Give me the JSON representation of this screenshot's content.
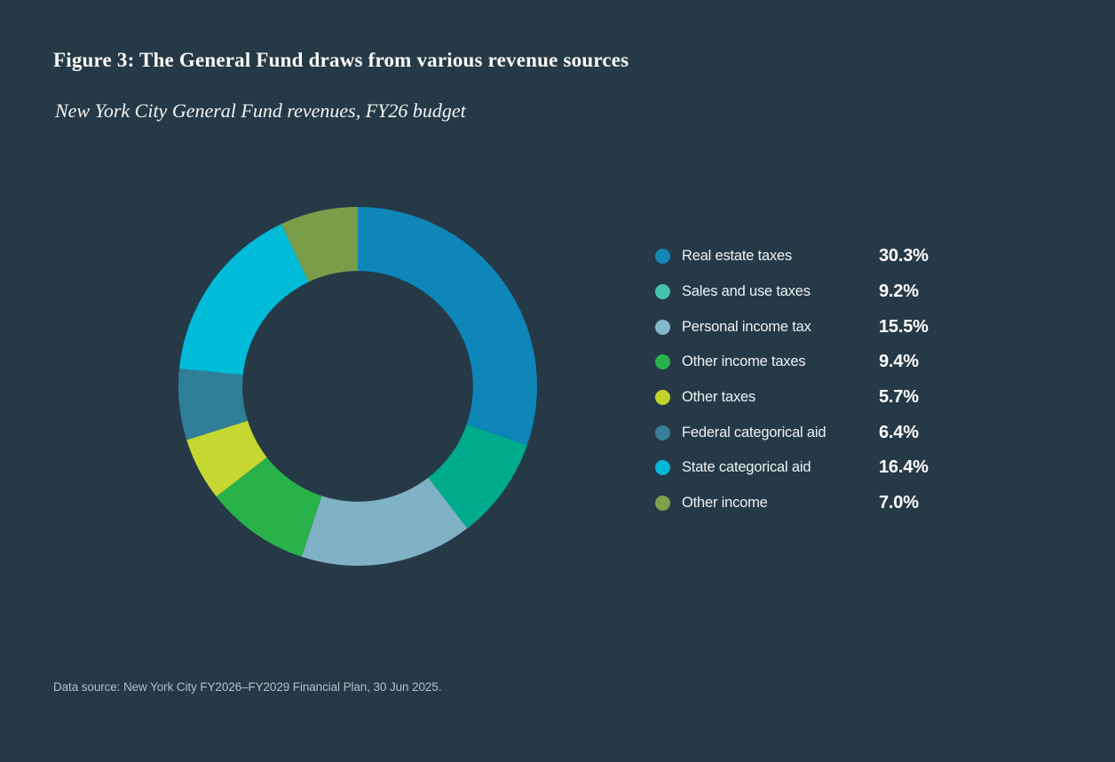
{
  "figure": {
    "title": "Figure 3: The General Fund draws from various revenue sources",
    "subtitle": "New York City General Fund revenues, FY26 budget",
    "source_note": "Data source: New York City FY2026–FY2029 Financial Plan, 30 Jun 2025."
  },
  "colors": {
    "background": "#263947",
    "title_text": "#fbfbf8",
    "legend_label_text": "#eef1f1",
    "legend_value_text": "#ffffff",
    "source_text": "#b3bec6"
  },
  "chart_data": {
    "type": "pie",
    "subtype": "donut",
    "title": "Figure 3: The General Fund draws from various revenue sources",
    "subtitle": "New York City General Fund revenues, FY26 budget",
    "categories": [
      "Real estate taxes",
      "Sales and use taxes",
      "Personal income tax",
      "Other income taxes",
      "Other taxes",
      "Federal categorical aid",
      "State categorical aid",
      "Other income"
    ],
    "values": [
      30.3,
      9.2,
      15.5,
      9.4,
      5.7,
      6.4,
      16.4,
      7.0
    ],
    "labels_pct": [
      "30.3%",
      "9.2%",
      "15.5%",
      "9.4%",
      "5.7%",
      "6.4%",
      "16.4%",
      "7.0%"
    ],
    "colors": [
      "#0E86B8",
      "#00AA8D",
      "#7FB2C5",
      "#2AB24A",
      "#C5D730",
      "#2F7F99",
      "#00BCD9",
      "#7A9D4A"
    ],
    "legend_dot_colors": [
      "#1287B5",
      "#45C2AE",
      "#85B7CA",
      "#27B24C",
      "#C2D32A",
      "#39809A",
      "#00B9D6",
      "#7DA24C"
    ],
    "start_angle_deg": -90,
    "direction": "clockwise",
    "inner_radius_ratio": 0.643,
    "legend_position": "right",
    "data_labels": "legend-only"
  }
}
